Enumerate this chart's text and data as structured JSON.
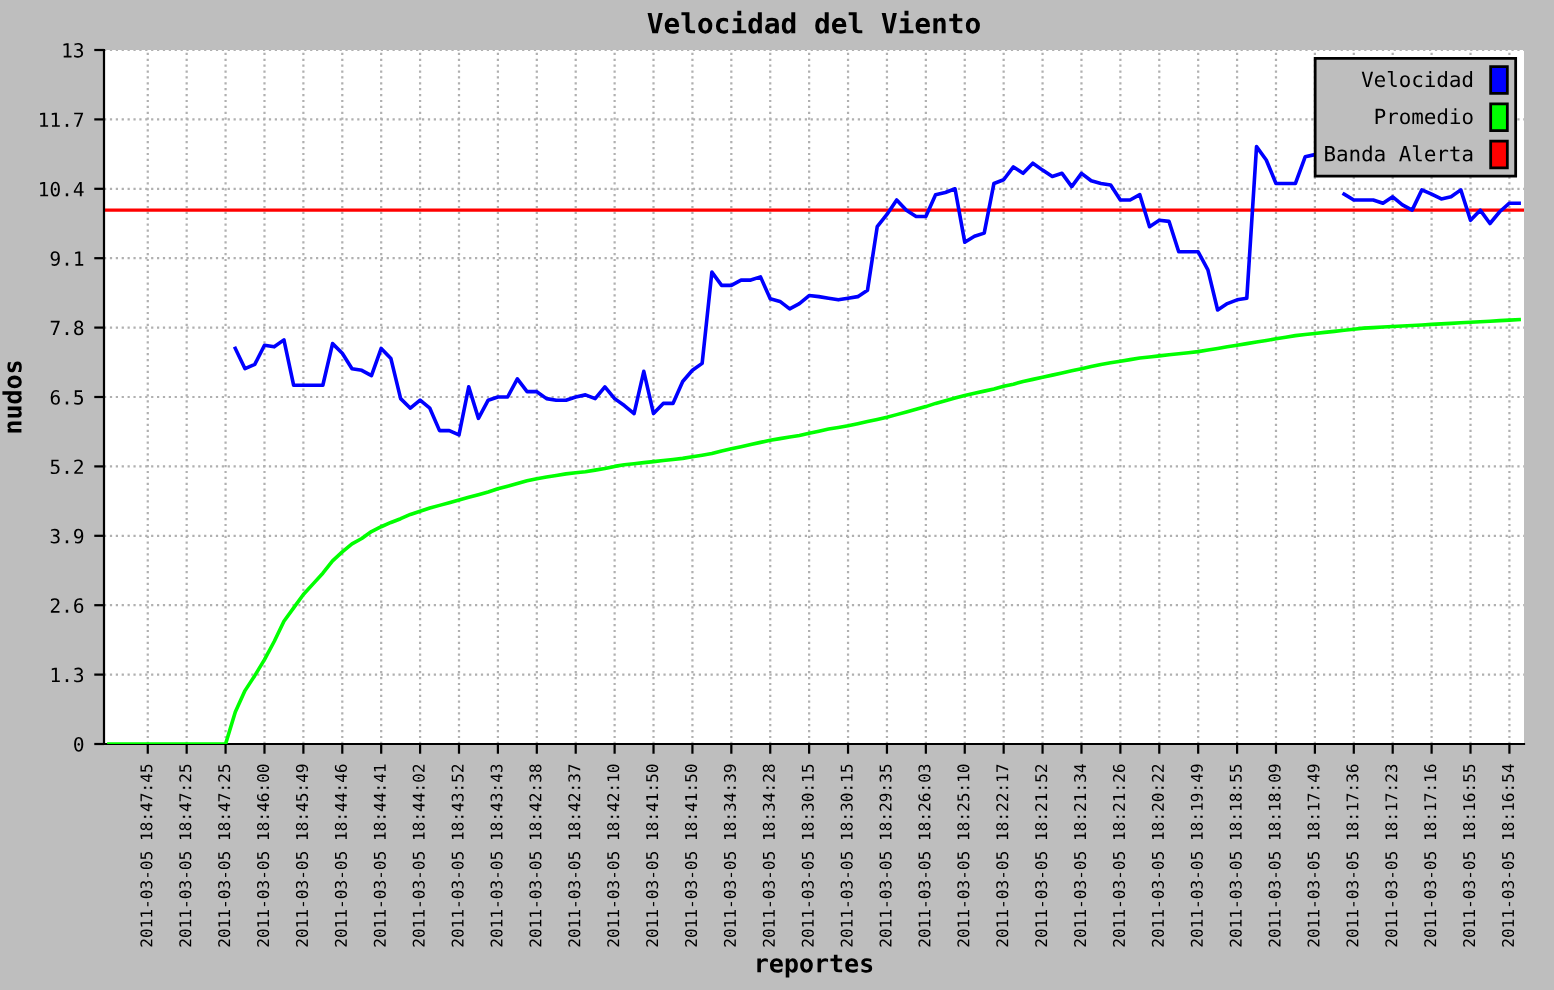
{
  "chart_data": {
    "type": "line",
    "title": "Velocidad del Viento",
    "xlabel": "reportes",
    "ylabel": "nudos",
    "categories": [
      null,
      null,
      null,
      null,
      "2011-03-05 18:47:45",
      null,
      null,
      null,
      "2011-03-05 18:47:25",
      null,
      null,
      null,
      "2011-03-05 18:47:25",
      null,
      null,
      null,
      "2011-03-05 18:46:00",
      null,
      null,
      null,
      "2011-03-05 18:45:49",
      null,
      null,
      null,
      "2011-03-05 18:44:46",
      null,
      null,
      null,
      "2011-03-05 18:44:41",
      null,
      null,
      null,
      "2011-03-05 18:44:02",
      null,
      null,
      null,
      "2011-03-05 18:43:52",
      null,
      null,
      null,
      "2011-03-05 18:43:43",
      null,
      null,
      null,
      "2011-03-05 18:42:38",
      null,
      null,
      null,
      "2011-03-05 18:42:37",
      null,
      null,
      null,
      "2011-03-05 18:42:10",
      null,
      null,
      null,
      "2011-03-05 18:41:50",
      null,
      null,
      null,
      "2011-03-05 18:41:50",
      null,
      null,
      null,
      "2011-03-05 18:34:39",
      null,
      null,
      null,
      "2011-03-05 18:34:28",
      null,
      null,
      null,
      "2011-03-05 18:30:15",
      null,
      null,
      null,
      "2011-03-05 18:30:15",
      null,
      null,
      null,
      "2011-03-05 18:29:35",
      null,
      null,
      null,
      "2011-03-05 18:26:03",
      null,
      null,
      null,
      "2011-03-05 18:25:10",
      null,
      null,
      null,
      "2011-03-05 18:22:17",
      null,
      null,
      null,
      "2011-03-05 18:21:52",
      null,
      null,
      null,
      "2011-03-05 18:21:34",
      null,
      null,
      null,
      "2011-03-05 18:21:26",
      null,
      null,
      null,
      "2011-03-05 18:20:22",
      null,
      null,
      null,
      "2011-03-05 18:19:49",
      null,
      null,
      null,
      "2011-03-05 18:18:55",
      null,
      null,
      null,
      "2011-03-05 18:18:09",
      null,
      null,
      null,
      "2011-03-05 18:17:49",
      null,
      null,
      null,
      "2011-03-05 18:17:36",
      null,
      null,
      null,
      "2011-03-05 18:17:23",
      null,
      null,
      null,
      "2011-03-05 18:17:16",
      null,
      null,
      null,
      "2011-03-05 18:16:55",
      null,
      null,
      null,
      "2011-03-05 18:16:54",
      null
    ],
    "series": [
      {
        "name": "Velocidad",
        "color": "#0000ff",
        "values": [
          null,
          null,
          null,
          null,
          null,
          null,
          null,
          null,
          null,
          null,
          null,
          null,
          null,
          7.41,
          7.03,
          7.11,
          7.47,
          7.44,
          7.57,
          6.72,
          6.72,
          6.72,
          6.72,
          7.5,
          7.32,
          7.03,
          7.0,
          6.9,
          7.41,
          7.22,
          6.47,
          6.29,
          6.44,
          6.29,
          5.87,
          5.87,
          5.79,
          6.69,
          6.1,
          6.44,
          6.5,
          6.5,
          6.84,
          6.6,
          6.6,
          6.47,
          6.44,
          6.44,
          6.5,
          6.54,
          6.47,
          6.69,
          6.47,
          6.34,
          6.19,
          6.98,
          6.19,
          6.38,
          6.38,
          6.79,
          7.0,
          7.13,
          8.84,
          8.59,
          8.59,
          8.69,
          8.69,
          8.75,
          8.34,
          8.29,
          8.15,
          8.25,
          8.4,
          8.38,
          8.35,
          8.32,
          8.35,
          8.38,
          8.5,
          9.69,
          9.92,
          10.19,
          10.0,
          9.88,
          9.88,
          10.29,
          10.33,
          10.4,
          9.4,
          9.51,
          9.57,
          10.5,
          10.57,
          10.81,
          10.69,
          10.88,
          10.75,
          10.63,
          10.69,
          10.44,
          10.69,
          10.55,
          10.5,
          10.47,
          10.19,
          10.19,
          10.29,
          9.69,
          9.81,
          9.79,
          9.22,
          9.22,
          9.22,
          8.88,
          8.13,
          8.25,
          8.32,
          8.35,
          11.19,
          10.94,
          10.5,
          10.5,
          10.5,
          11.0,
          11.04,
          null,
          null,
          10.3,
          10.19,
          10.19,
          10.19,
          10.13,
          10.25,
          10.1,
          10.0,
          10.38,
          10.3,
          10.21,
          10.25,
          10.38,
          9.81,
          10.0,
          9.75,
          9.97,
          10.13,
          10.13
        ]
      },
      {
        "name": "Promedio",
        "color": "#00ff00",
        "values": [
          0,
          0,
          0,
          0,
          0,
          0,
          0,
          0,
          0,
          0,
          0,
          0,
          0,
          0.6,
          1.0,
          1.28,
          1.58,
          1.92,
          2.3,
          2.55,
          2.8,
          3.0,
          3.2,
          3.43,
          3.6,
          3.75,
          3.85,
          3.98,
          4.07,
          4.15,
          4.22,
          4.3,
          4.36,
          4.42,
          4.47,
          4.52,
          4.57,
          4.62,
          4.67,
          4.72,
          4.78,
          4.83,
          4.88,
          4.93,
          4.97,
          5.0,
          5.03,
          5.06,
          5.08,
          5.1,
          5.13,
          5.16,
          5.2,
          5.23,
          5.25,
          5.27,
          5.29,
          5.31,
          5.33,
          5.35,
          5.38,
          5.41,
          5.44,
          5.49,
          5.53,
          5.57,
          5.61,
          5.65,
          5.69,
          5.72,
          5.75,
          5.78,
          5.82,
          5.86,
          5.9,
          5.93,
          5.96,
          6.0,
          6.04,
          6.08,
          6.12,
          6.17,
          6.22,
          6.27,
          6.32,
          6.38,
          6.43,
          6.48,
          6.53,
          6.57,
          6.61,
          6.65,
          6.7,
          6.74,
          6.79,
          6.83,
          6.87,
          6.91,
          6.95,
          6.99,
          7.03,
          7.07,
          7.11,
          7.14,
          7.17,
          7.2,
          7.23,
          7.25,
          7.27,
          7.29,
          7.31,
          7.33,
          7.35,
          7.38,
          7.41,
          7.44,
          7.47,
          7.5,
          7.53,
          7.56,
          7.59,
          7.62,
          7.65,
          7.67,
          7.69,
          7.71,
          7.73,
          7.75,
          7.77,
          7.79,
          7.8,
          7.81,
          7.82,
          7.83,
          7.84,
          7.85,
          7.86,
          7.87,
          7.88,
          7.89,
          7.9,
          7.91,
          7.92,
          7.93,
          7.94,
          7.95
        ]
      }
    ],
    "ref_lines": [
      {
        "axis": "y",
        "value": 10,
        "label": "Banda Alerta",
        "color": "#ff0000"
      }
    ],
    "ylim": [
      0,
      13
    ],
    "yticks": [
      0,
      1.3,
      2.6,
      3.9,
      5.2,
      6.5,
      7.8,
      9.1,
      10.4,
      11.7,
      13
    ],
    "grid": true,
    "legend": "top right",
    "marker": "none",
    "line_style": "solid"
  }
}
